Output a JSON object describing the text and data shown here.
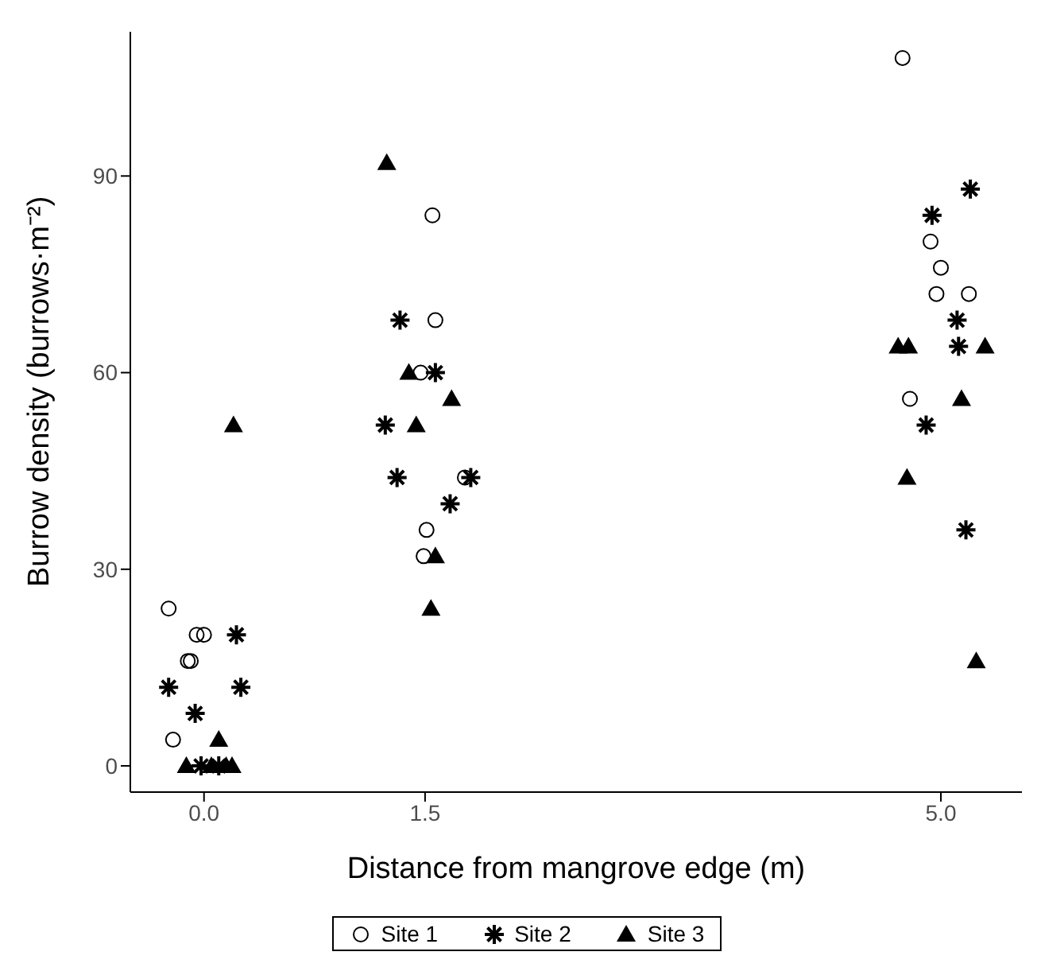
{
  "chart_data": {
    "type": "scatter",
    "xlabel": "Distance from mangrove edge (m)",
    "ylabel": "Burrow density (burrows·m⁻²)",
    "xlim": [
      -0.5,
      5.55
    ],
    "xticks": [
      {
        "value": 0,
        "label": "0.0"
      },
      1.5,
      {
        "value": 5,
        "label": "5.0"
      }
    ],
    "ylim": [
      -4,
      112
    ],
    "yticks": [
      0,
      30,
      60,
      90
    ],
    "legend": "bottom",
    "series": [
      {
        "name": "Site 1",
        "color": "#000000",
        "marker": "circle",
        "x": [
          -0.24,
          -0.05,
          0,
          -0.11,
          -0.09,
          -0.21,
          1.55,
          1.57,
          1.47,
          1.77,
          1.51,
          1.49,
          4.74,
          4.93,
          5.0,
          4.97,
          5.19,
          4.79
        ],
        "values": [
          24,
          20,
          20,
          16,
          16,
          4,
          84,
          68,
          60,
          44,
          36,
          32,
          108,
          80,
          76,
          72,
          72,
          56
        ]
      },
      {
        "name": "Site 2",
        "color": "#000000",
        "marker": "cross",
        "x": [
          0.22,
          -0.24,
          0.25,
          -0.06,
          -0.02,
          0.1,
          1.33,
          1.57,
          1.23,
          1.31,
          1.81,
          1.67,
          5.2,
          4.94,
          5.11,
          5.12,
          4.9,
          5.17
        ],
        "values": [
          20,
          12,
          12,
          8,
          0,
          0,
          68,
          60,
          52,
          44,
          44,
          40,
          88,
          84,
          68,
          64,
          52,
          36
        ]
      },
      {
        "name": "Site 3",
        "color": "#000000",
        "marker": "triangle",
        "x": [
          -0.12,
          0.05,
          0.15,
          0.19,
          0.1,
          0.2,
          1.24,
          1.39,
          1.68,
          1.44,
          1.57,
          1.54,
          4.71,
          4.78,
          5.3,
          5.14,
          4.77,
          5.24
        ],
        "values": [
          0,
          0,
          0,
          0,
          4,
          52,
          92,
          60,
          56,
          52,
          32,
          24,
          64,
          64,
          64,
          56,
          44,
          16
        ]
      }
    ]
  }
}
